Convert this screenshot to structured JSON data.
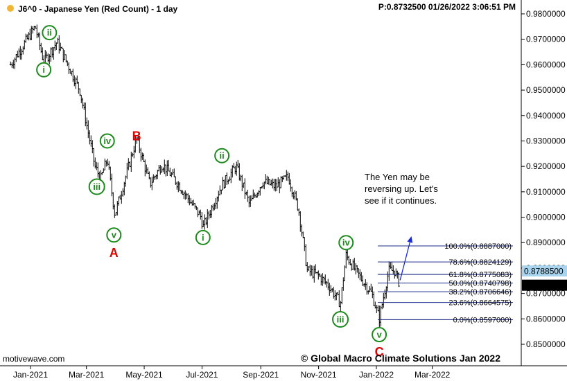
{
  "header": {
    "symbol": "J6^0 - Japanese Yen (Red Count) - 1 day",
    "status_dot_color": "#f2b632",
    "readout": "P:0.8732500  01/26/2022 3:06:51 PM"
  },
  "chart_data": {
    "type": "bar",
    "subtype": "ohlc",
    "title": "J6^0 - Japanese Yen (Red Count) - 1 day",
    "ylim": [
      0.845,
      0.986
    ],
    "y_ticks": [
      "0.9800000",
      "0.9700000",
      "0.9600000",
      "0.9500000",
      "0.9400000",
      "0.9300000",
      "0.9200000",
      "0.9100000",
      "0.9000000",
      "0.8900000",
      "0.8800000",
      "0.8700000",
      "0.8600000",
      "0.8500000"
    ],
    "x_ticks": [
      "Jan-2021",
      "Mar-2021",
      "May-2021",
      "Jul-2021",
      "Sep-2021",
      "Nov-2021",
      "Jan-2022",
      "Mar-2022"
    ],
    "swing_points": [
      {
        "date": "2020-12-11",
        "close": 0.96
      },
      {
        "date": "2021-01-06",
        "close": 0.975
      },
      {
        "date": "2021-01-15",
        "close": 0.961
      },
      {
        "date": "2021-01-29",
        "close": 0.969
      },
      {
        "date": "2021-02-22",
        "close": 0.95
      },
      {
        "date": "2021-03-10",
        "close": 0.92
      },
      {
        "date": "2021-03-16",
        "close": 0.915
      },
      {
        "date": "2021-03-23",
        "close": 0.923
      },
      {
        "date": "2021-03-31",
        "close": 0.901
      },
      {
        "date": "2021-04-23",
        "close": 0.931
      },
      {
        "date": "2021-05-07",
        "close": 0.913
      },
      {
        "date": "2021-05-20",
        "close": 0.921
      },
      {
        "date": "2021-06-04",
        "close": 0.914
      },
      {
        "date": "2021-06-30",
        "close": 0.9
      },
      {
        "date": "2021-07-02",
        "close": 0.896
      },
      {
        "date": "2021-07-21",
        "close": 0.912
      },
      {
        "date": "2021-08-06",
        "close": 0.92
      },
      {
        "date": "2021-08-20",
        "close": 0.905
      },
      {
        "date": "2021-09-03",
        "close": 0.914
      },
      {
        "date": "2021-09-17",
        "close": 0.912
      },
      {
        "date": "2021-09-30",
        "close": 0.916
      },
      {
        "date": "2021-10-11",
        "close": 0.903
      },
      {
        "date": "2021-10-20",
        "close": 0.879
      },
      {
        "date": "2021-11-01",
        "close": 0.877
      },
      {
        "date": "2021-11-12",
        "close": 0.873
      },
      {
        "date": "2021-11-24",
        "close": 0.866
      },
      {
        "date": "2021-11-30",
        "close": 0.885
      },
      {
        "date": "2021-12-10",
        "close": 0.879
      },
      {
        "date": "2021-12-27",
        "close": 0.87
      },
      {
        "date": "2022-01-04",
        "close": 0.86
      },
      {
        "date": "2022-01-14",
        "close": 0.879
      },
      {
        "date": "2022-01-20",
        "close": 0.879
      },
      {
        "date": "2022-01-26",
        "close": 0.8733
      }
    ],
    "wave_labels": [
      {
        "text": "i",
        "date": "2021-01-15",
        "price": 0.958,
        "color": "#1a8a1a"
      },
      {
        "text": "ii",
        "date": "2021-01-21",
        "price": 0.9726,
        "color": "#1a8a1a"
      },
      {
        "text": "iii",
        "date": "2021-03-12",
        "price": 0.912,
        "color": "#1a8a1a"
      },
      {
        "text": "iv",
        "date": "2021-03-23",
        "price": 0.93,
        "color": "#1a8a1a"
      },
      {
        "text": "v",
        "date": "2021-03-30",
        "price": 0.893,
        "color": "#1a8a1a"
      },
      {
        "text": "ii",
        "date": "2021-07-22",
        "price": 0.9242,
        "color": "#1a8a1a"
      },
      {
        "text": "i",
        "date": "2021-07-02",
        "price": 0.892,
        "color": "#1a8a1a"
      },
      {
        "text": "iv",
        "date": "2021-11-30",
        "price": 0.89,
        "color": "#1a8a1a"
      },
      {
        "text": "iii",
        "date": "2021-11-24",
        "price": 0.8598,
        "color": "#1a8a1a"
      },
      {
        "text": "v",
        "date": "2022-01-04",
        "price": 0.8538,
        "color": "#1a8a1a"
      }
    ],
    "abc_labels": [
      {
        "text": "B",
        "date": "2021-04-23",
        "price": 0.9322
      },
      {
        "text": "A",
        "date": "2021-03-30",
        "price": 0.8862
      },
      {
        "text": "C",
        "date": "2022-01-04",
        "price": 0.8473
      }
    ],
    "fib_levels": [
      {
        "label": "100.0%(0.8887000)",
        "value": 0.8887
      },
      {
        "label": "78.6%(0.8824129)",
        "value": 0.8824129
      },
      {
        "label": "61.8%(0.8775083)",
        "value": 0.8775083
      },
      {
        "label": "50.0%(0.8740798)",
        "value": 0.8740798
      },
      {
        "label": "38.2%(0.8706646)",
        "value": 0.8706646
      },
      {
        "label": "23.6%(0.8664575)",
        "value": 0.8664575
      },
      {
        "label": "0.0%(0.8597000)",
        "value": 0.8597
      }
    ],
    "fib_start_date": "2022-01-04",
    "fib_color": "#1a2a8a",
    "projection_arrow": {
      "from_date": "2022-01-26",
      "from": 0.8752,
      "to_date": "2022-02-07",
      "to": 0.8925,
      "color": "#1a2ad8"
    },
    "price_markers": [
      {
        "text": "0.8788500",
        "value": 0.87885,
        "bg": "#a8d4ee",
        "fg": "#ffffff"
      },
      {
        "text": "0.8732500",
        "value": 0.87325,
        "bg": "#000000",
        "fg": "#ffffff"
      }
    ],
    "grid": false,
    "bar_color": "#000000"
  },
  "annotation": {
    "lines": [
      "The Yen may be",
      "reversing up. Let's",
      "see if it continues."
    ]
  },
  "copyright": "© Global Macro Climate Solutions Jan 2022",
  "watermark": "motivewave.com"
}
